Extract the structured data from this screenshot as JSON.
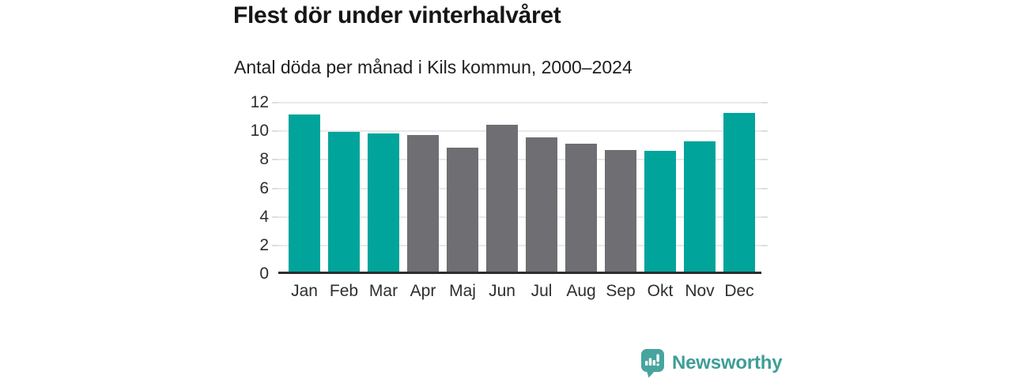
{
  "header": {
    "title": "Flest dör under vinterhalvåret",
    "subtitle": "Antal döda per månad i Kils kommun, 2000–2024"
  },
  "chart_data": {
    "type": "bar",
    "title": "Flest dör under vinterhalvåret",
    "subtitle": "Antal döda per månad i Kils kommun, 2000–2024",
    "categories": [
      "Jan",
      "Feb",
      "Mar",
      "Apr",
      "Maj",
      "Jun",
      "Jul",
      "Aug",
      "Sep",
      "Okt",
      "Nov",
      "Dec"
    ],
    "values": [
      11.0,
      9.8,
      9.7,
      9.55,
      8.7,
      10.3,
      9.4,
      8.95,
      8.5,
      8.45,
      9.15,
      11.1
    ],
    "groups": [
      "winter",
      "winter",
      "winter",
      "summer",
      "summer",
      "summer",
      "summer",
      "summer",
      "summer",
      "winter",
      "winter",
      "winter"
    ],
    "group_colors": {
      "winter": "#00A49B",
      "summer": "#6E6E73"
    },
    "xlabel": "",
    "ylabel": "",
    "ylim": [
      0,
      12
    ],
    "yticks": [
      0,
      2,
      4,
      6,
      8,
      10,
      12
    ],
    "grid": "horizontal",
    "legend": "none"
  },
  "footer": {
    "brand": "Newsworthy",
    "brand_color": "#3E9E97",
    "logo_icon": "bar-chart-speech-bubble"
  },
  "colors": {
    "background": "#ffffff",
    "title_text": "#161616",
    "subtitle_text": "#1f1f1f",
    "axis_line": "#2d2d2d",
    "gridline": "#e9e9e9",
    "tick": "#dedede",
    "axis_label": "#2e2e2e",
    "bar_winter": "#00A49B",
    "bar_summer": "#6E6E73"
  }
}
